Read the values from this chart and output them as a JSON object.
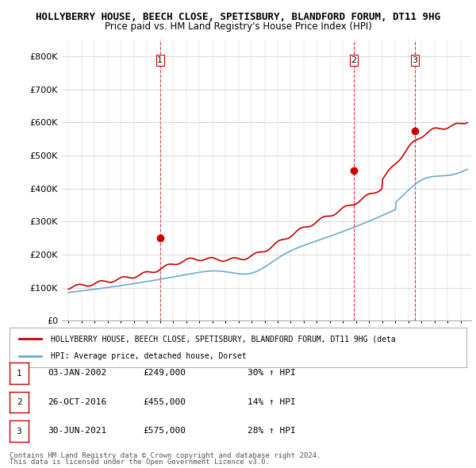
{
  "title_line1": "HOLLYBERRY HOUSE, BEECH CLOSE, SPETISBURY, BLANDFORD FORUM, DT11 9HG",
  "title_line2": "Price paid vs. HM Land Registry's House Price Index (HPI)",
  "ylim": [
    0,
    850000
  ],
  "yticks": [
    0,
    100000,
    200000,
    300000,
    400000,
    500000,
    600000,
    700000,
    800000
  ],
  "ytick_labels": [
    "£0",
    "£100K",
    "£200K",
    "£300K",
    "£400K",
    "£500K",
    "£600K",
    "£700K",
    "£800K"
  ],
  "hpi_color": "#6fa8d4",
  "price_color": "#cc0000",
  "sale_color": "#cc0000",
  "dashed_color": "#cc0000",
  "background_color": "#ffffff",
  "grid_color": "#cccccc",
  "sale_dates": [
    2002.01,
    2016.82,
    2021.5
  ],
  "sale_prices": [
    249000,
    455000,
    575000
  ],
  "sale_labels": [
    "1",
    "2",
    "3"
  ],
  "legend_entry1": "HOLLYBERRY HOUSE, BEECH CLOSE, SPETISBURY, BLANDFORD FORUM, DT11 9HG (deta",
  "legend_entry2": "HPI: Average price, detached house, Dorset",
  "table_rows": [
    {
      "num": "1",
      "date": "03-JAN-2002",
      "price": "£249,000",
      "change": "30% ↑ HPI"
    },
    {
      "num": "2",
      "date": "26-OCT-2016",
      "price": "£455,000",
      "change": "14% ↑ HPI"
    },
    {
      "num": "3",
      "date": "30-JUN-2021",
      "price": "£575,000",
      "change": "28% ↑ HPI"
    }
  ],
  "footnote1": "Contains HM Land Registry data © Crown copyright and database right 2024.",
  "footnote2": "This data is licensed under the Open Government Licence v3.0."
}
